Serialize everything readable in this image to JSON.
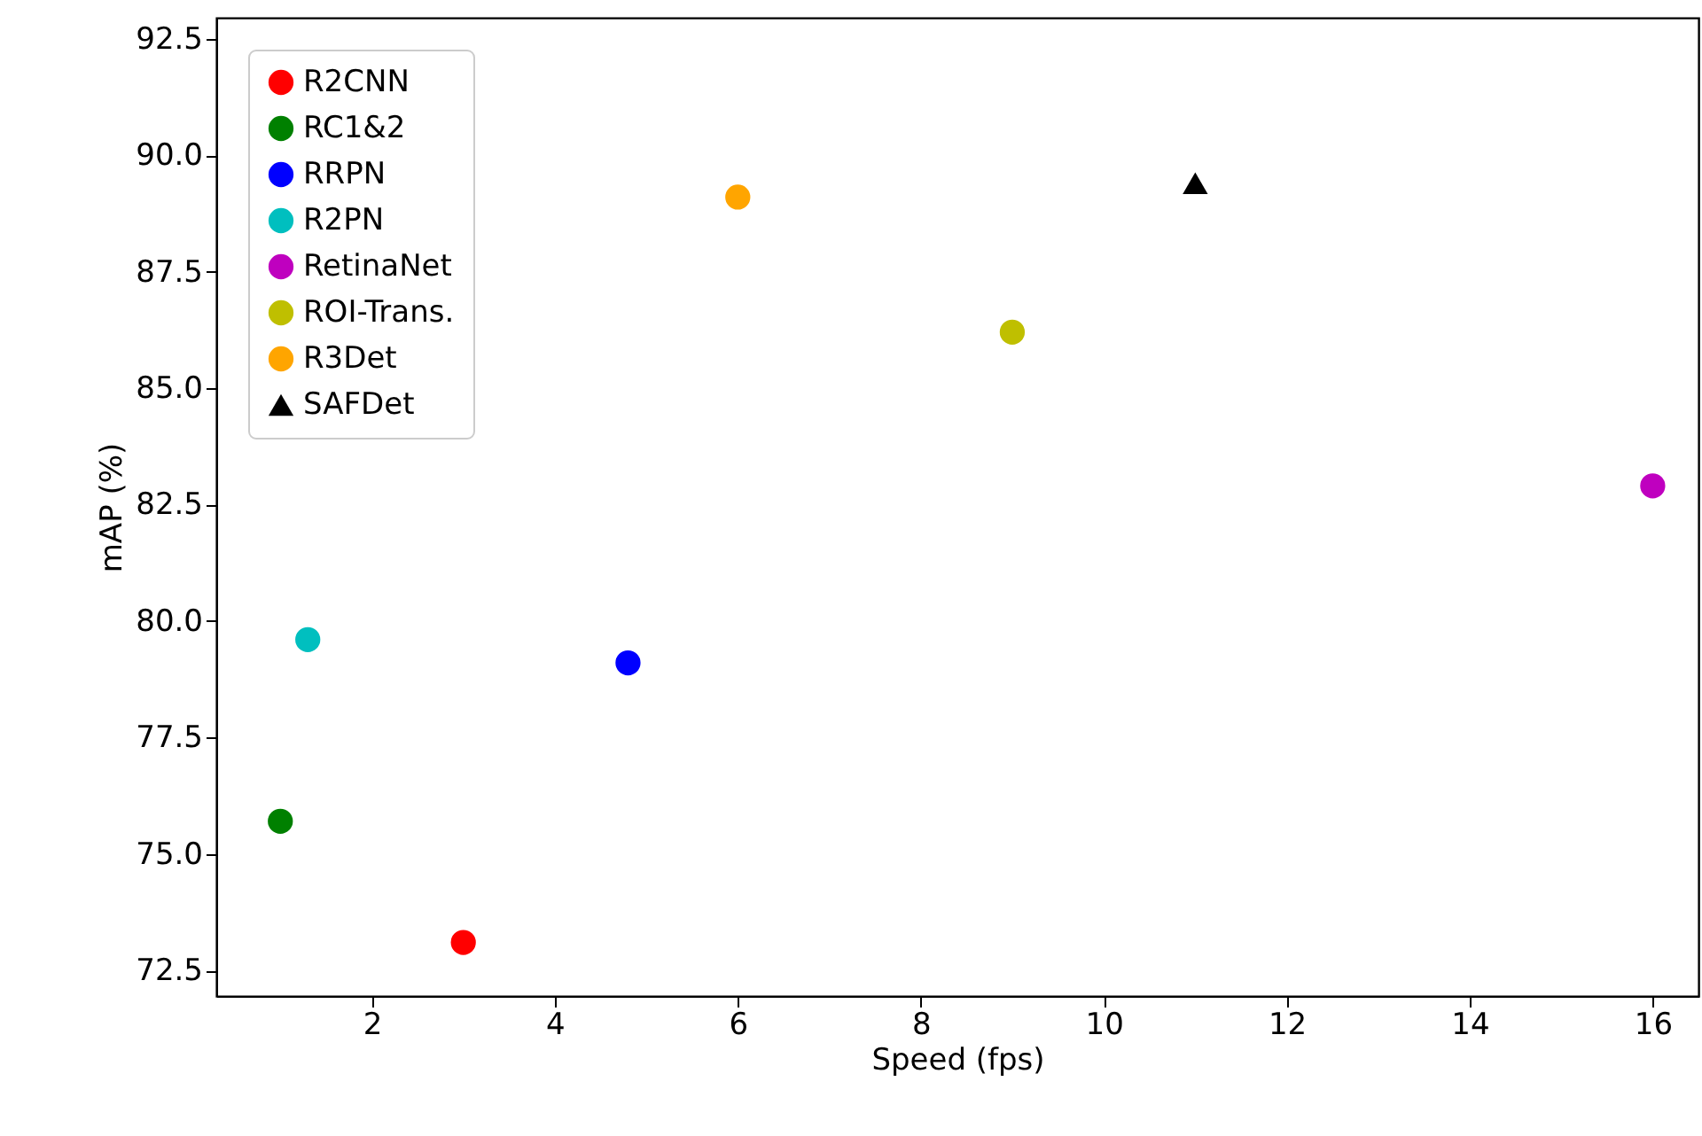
{
  "chart_data": {
    "type": "scatter",
    "xlabel": "Speed (fps)",
    "ylabel": "mAP (%)",
    "xlim": [
      0.3,
      16.5
    ],
    "xticks": [
      2,
      4,
      6,
      8,
      10,
      12,
      14,
      16
    ],
    "ylim": [
      71.95,
      92.95
    ],
    "yticks": [
      {
        "value": 72.5,
        "label": "72.5"
      },
      {
        "value": 75,
        "label": "75.0"
      },
      {
        "value": 77.5,
        "label": "77.5"
      },
      {
        "value": 80,
        "label": "80.0"
      },
      {
        "value": 82.5,
        "label": "82.5"
      },
      {
        "value": 85,
        "label": "85.0"
      },
      {
        "value": 87.5,
        "label": "87.5"
      },
      {
        "value": 90,
        "label": "90.0"
      },
      {
        "value": 92.5,
        "label": "92.5"
      }
    ],
    "grid": false,
    "legend": "top left",
    "series": [
      {
        "name": "R2CNN",
        "color": "#ff0000",
        "marker": "circle",
        "x": [
          3
        ],
        "values": [
          73.1
        ]
      },
      {
        "name": "RC1&2",
        "color": "#008000",
        "marker": "circle",
        "x": [
          1
        ],
        "values": [
          75.7
        ]
      },
      {
        "name": "RRPN",
        "color": "#0000ff",
        "marker": "circle",
        "x": [
          4.8
        ],
        "values": [
          79.1
        ]
      },
      {
        "name": "R2PN",
        "color": "#00bfbf",
        "marker": "circle",
        "x": [
          1.3
        ],
        "values": [
          79.6
        ]
      },
      {
        "name": "RetinaNet",
        "color": "#bf00bf",
        "marker": "circle",
        "x": [
          16
        ],
        "values": [
          82.9
        ]
      },
      {
        "name": "ROI-Trans.",
        "color": "#bfbf00",
        "marker": "circle",
        "x": [
          9
        ],
        "values": [
          86.2
        ]
      },
      {
        "name": "R3Det",
        "color": "#ffa500",
        "marker": "circle",
        "x": [
          6
        ],
        "values": [
          89.1
        ]
      },
      {
        "name": "SAFDet",
        "color": "#000000",
        "marker": "triangle",
        "x": [
          11
        ],
        "values": [
          89.4
        ]
      }
    ]
  }
}
